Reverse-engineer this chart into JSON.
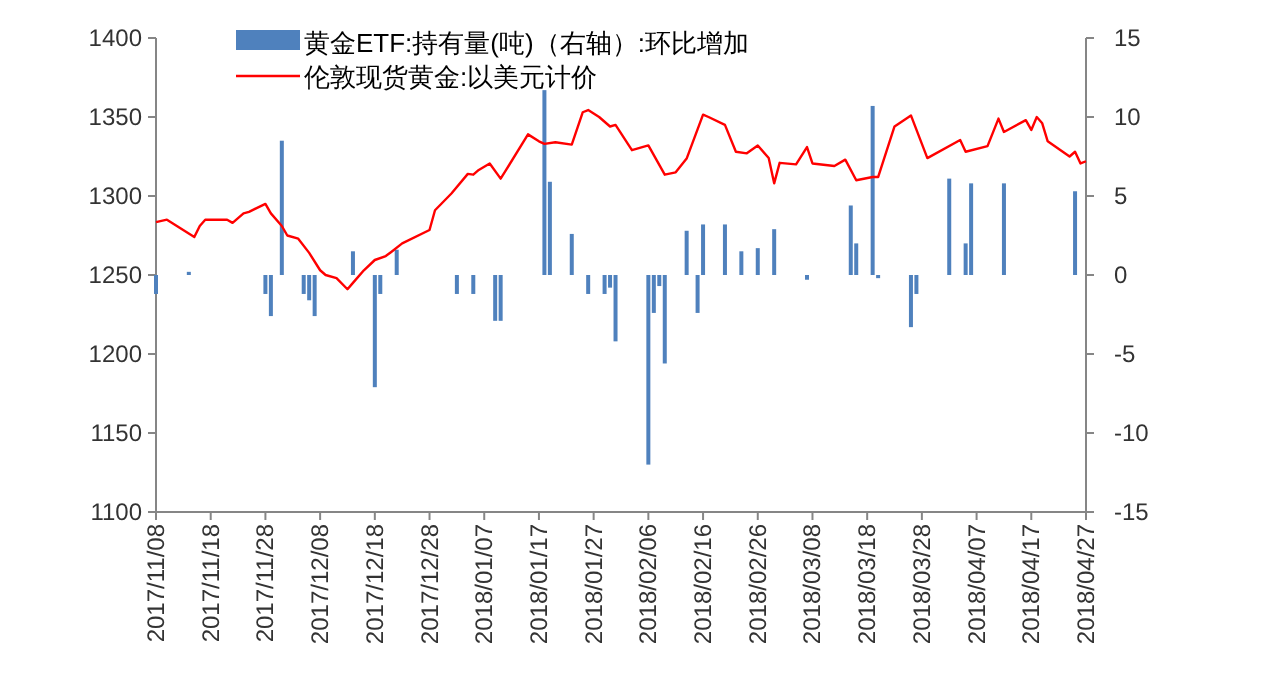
{
  "chart_data": {
    "type": "line",
    "legend": "top",
    "grid": false,
    "xlim": [
      "2017-11-08",
      "2018-04-27"
    ],
    "xticks": [
      {
        "value": "2017-11-08",
        "label": "2017/11/08"
      },
      {
        "value": "2017-11-18",
        "label": "2017/11/18"
      },
      {
        "value": "2017-11-28",
        "label": "2017/11/28"
      },
      {
        "value": "2017-12-08",
        "label": "2017/12/08"
      },
      {
        "value": "2017-12-18",
        "label": "2017/12/18"
      },
      {
        "value": "2017-12-28",
        "label": "2017/12/28"
      },
      {
        "value": "2018-01-07",
        "label": "2018/01/07"
      },
      {
        "value": "2018-01-17",
        "label": "2018/01/17"
      },
      {
        "value": "2018-01-27",
        "label": "2018/01/27"
      },
      {
        "value": "2018-02-06",
        "label": "2018/02/06"
      },
      {
        "value": "2018-02-16",
        "label": "2018/02/16"
      },
      {
        "value": "2018-02-26",
        "label": "2018/02/26"
      },
      {
        "value": "2018-03-08",
        "label": "2018/03/08"
      },
      {
        "value": "2018-03-18",
        "label": "2018/03/18"
      },
      {
        "value": "2018-03-28",
        "label": "2018/03/28"
      },
      {
        "value": "2018-04-07",
        "label": "2018/04/07"
      },
      {
        "value": "2018-04-17",
        "label": "2018/04/17"
      },
      {
        "value": "2018-04-27",
        "label": "2018/04/27"
      }
    ],
    "ylim": [
      1100,
      1400
    ],
    "yticks": [
      1100,
      1150,
      1200,
      1250,
      1300,
      1350,
      1400
    ],
    "y2lim": [
      -15,
      15
    ],
    "y2ticks": [
      -15,
      -10,
      -5,
      0,
      5,
      10,
      15
    ],
    "series": [
      {
        "name": "黄金ETF:持有量(吨)（右轴）:环比增加",
        "type": "bar",
        "axis": "y2",
        "color": "#4f81bd",
        "x": [
          "2017-11-08",
          "2017-11-14",
          "2017-11-28",
          "2017-11-29",
          "2017-12-01",
          "2017-12-05",
          "2017-12-06",
          "2017-12-07",
          "2017-12-14",
          "2017-12-18",
          "2017-12-19",
          "2017-12-22",
          "2018-01-02",
          "2018-01-05",
          "2018-01-09",
          "2018-01-10",
          "2018-01-18",
          "2018-01-19",
          "2018-01-23",
          "2018-01-26",
          "2018-01-29",
          "2018-01-30",
          "2018-01-31",
          "2018-02-06",
          "2018-02-07",
          "2018-02-08",
          "2018-02-09",
          "2018-02-13",
          "2018-02-15",
          "2018-02-16",
          "2018-02-20",
          "2018-02-23",
          "2018-02-26",
          "2018-03-01",
          "2018-03-07",
          "2018-03-15",
          "2018-03-16",
          "2018-03-19",
          "2018-03-20",
          "2018-03-26",
          "2018-03-27",
          "2018-04-02",
          "2018-04-05",
          "2018-04-06",
          "2018-04-12",
          "2018-04-25"
        ],
        "values": [
          -1.2,
          0.2,
          -1.2,
          -2.6,
          8.5,
          -1.2,
          -1.6,
          -2.6,
          1.5,
          -7.1,
          -1.2,
          1.6,
          -1.2,
          -1.2,
          -2.9,
          -2.9,
          11.7,
          5.9,
          2.6,
          -1.2,
          -1.2,
          -0.8,
          -4.2,
          -12.0,
          -2.4,
          -0.7,
          -5.6,
          2.8,
          -2.4,
          3.2,
          3.2,
          1.5,
          1.7,
          2.9,
          -0.3,
          4.4,
          2.0,
          10.7,
          -0.2,
          -3.3,
          -1.2,
          6.1,
          2.0,
          5.8,
          5.8,
          5.3
        ]
      },
      {
        "name": "伦敦现货黄金:以美元计价",
        "color": "#ff0000",
        "x": [
          "2017-11-08",
          "2017-11-10",
          "2017-11-15",
          "2017-11-16",
          "2017-11-17",
          "2017-11-21",
          "2017-11-22",
          "2017-11-24",
          "2017-11-25",
          "2017-11-28",
          "2017-11-29",
          "2017-12-01",
          "2017-12-02",
          "2017-12-04",
          "2017-12-06",
          "2017-12-08",
          "2017-12-09",
          "2017-12-11",
          "2017-12-13",
          "2017-12-14",
          "2017-12-16",
          "2017-12-18",
          "2017-12-20",
          "2017-12-21",
          "2017-12-23",
          "2017-12-28",
          "2017-12-29",
          "2018-01-01",
          "2018-01-04",
          "2018-01-05",
          "2018-01-06",
          "2018-01-08",
          "2018-01-10",
          "2018-01-11",
          "2018-01-15",
          "2018-01-17",
          "2018-01-18",
          "2018-01-20",
          "2018-01-23",
          "2018-01-25",
          "2018-01-26",
          "2018-01-28",
          "2018-01-30",
          "2018-01-31",
          "2018-02-03",
          "2018-02-06",
          "2018-02-09",
          "2018-02-11",
          "2018-02-13",
          "2018-02-16",
          "2018-02-17",
          "2018-02-20",
          "2018-02-22",
          "2018-02-24",
          "2018-02-26",
          "2018-02-28",
          "2018-03-01",
          "2018-03-02",
          "2018-03-05",
          "2018-03-07",
          "2018-03-08",
          "2018-03-12",
          "2018-03-14",
          "2018-03-16",
          "2018-03-19",
          "2018-03-20",
          "2018-03-23",
          "2018-03-26",
          "2018-03-29",
          "2018-04-04",
          "2018-04-05",
          "2018-04-09",
          "2018-04-11",
          "2018-04-12",
          "2018-04-16",
          "2018-04-17",
          "2018-04-18",
          "2018-04-19",
          "2018-04-20",
          "2018-04-24",
          "2018-04-25",
          "2018-04-26",
          "2018-04-27"
        ],
        "values": [
          1283.5,
          1285,
          1274,
          1281,
          1285,
          1285,
          1283,
          1289,
          1290,
          1295,
          1289,
          1281,
          1275,
          1273,
          1264,
          1253,
          1250,
          1248,
          1241,
          1245,
          1253,
          1259.5,
          1262,
          1264.6,
          1270,
          1278.5,
          1291,
          1301.6,
          1314,
          1313.5,
          1316.5,
          1320.6,
          1311,
          1316.5,
          1339,
          1334.6,
          1333,
          1334,
          1332.5,
          1353,
          1354.4,
          1350,
          1344,
          1345,
          1329,
          1332,
          1313.5,
          1315,
          1323.7,
          1351.5,
          1350,
          1345,
          1328,
          1327,
          1332,
          1324,
          1308,
          1321,
          1320,
          1331,
          1320.6,
          1319,
          1323,
          1310,
          1312,
          1312,
          1344,
          1351,
          1324,
          1335.4,
          1328,
          1331.6,
          1349,
          1340.5,
          1348,
          1341.8,
          1350,
          1346,
          1334.6,
          1325,
          1328,
          1320.6,
          1322
        ]
      }
    ]
  }
}
